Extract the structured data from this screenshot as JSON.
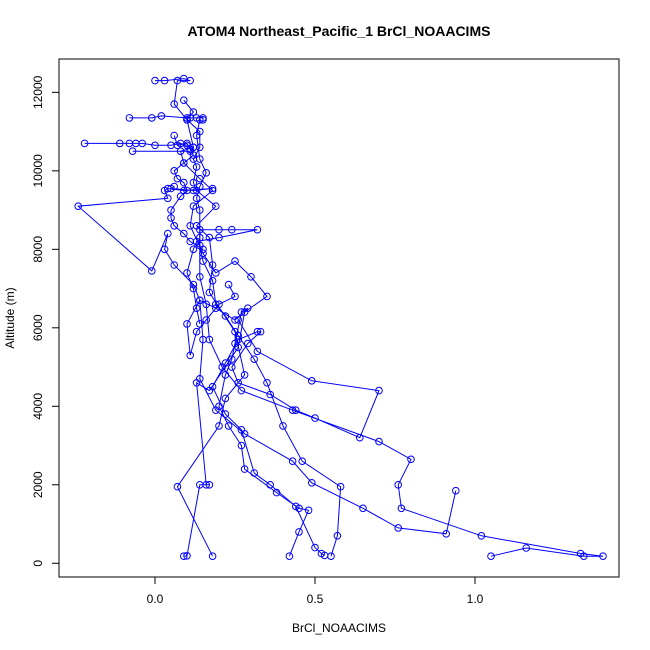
{
  "chart_data": {
    "type": "line",
    "title": "ATOM4 Northeast_Pacific_1 BrCl_NOAACIMS",
    "xlabel": "BrCl_NOAACIMS",
    "ylabel": "Altitude (m)",
    "xlim": [
      -0.3,
      1.45
    ],
    "ylim": [
      -350,
      12850
    ],
    "x_ticks": [
      0.0,
      0.5,
      1.0
    ],
    "x_tick_labels": [
      "0.0",
      "0.5",
      "1.0"
    ],
    "y_ticks": [
      0,
      2000,
      4000,
      6000,
      8000,
      10000,
      12000
    ],
    "y_tick_labels": [
      "0",
      "2000",
      "4000",
      "6000",
      "8000",
      "10000",
      "12000"
    ],
    "grid": false,
    "legend": "none",
    "series_color": "#0000ff",
    "series": [
      {
        "values": [
          [
            0.09,
            180
          ],
          [
            0.1,
            190
          ],
          [
            0.14,
            2000
          ],
          [
            0.17,
            2000
          ],
          [
            0.16,
            2000
          ],
          [
            0.13,
            4600
          ],
          [
            0.17,
            4400
          ],
          [
            0.26,
            5500
          ],
          [
            0.28,
            6400
          ],
          [
            0.35,
            6800
          ],
          [
            0.3,
            7300
          ],
          [
            0.25,
            7700
          ],
          [
            0.19,
            7400
          ],
          [
            0.15,
            7900
          ],
          [
            0.11,
            8600
          ],
          [
            0.12,
            9100
          ],
          [
            0.18,
            9500
          ],
          [
            0.14,
            9800
          ],
          [
            0.09,
            10200
          ],
          [
            0.08,
            10500
          ],
          [
            0.12,
            10600
          ],
          [
            0.1,
            11300
          ],
          [
            0.12,
            11500
          ],
          [
            0.09,
            11800
          ]
        ]
      },
      {
        "values": [
          [
            0.18,
            180
          ],
          [
            0.07,
            1950
          ],
          [
            0.2,
            3500
          ],
          [
            0.22,
            4200
          ],
          [
            0.28,
            4800
          ],
          [
            0.25,
            5900
          ],
          [
            0.17,
            6900
          ],
          [
            0.18,
            7600
          ],
          [
            0.17,
            8300
          ],
          [
            0.13,
            8600
          ],
          [
            0.19,
            9100
          ],
          [
            0.13,
            9500
          ],
          [
            0.12,
            9700
          ],
          [
            0.13,
            10100
          ],
          [
            0.12,
            10300
          ],
          [
            0.14,
            10600
          ],
          [
            0.14,
            11000
          ],
          [
            0.1,
            11300
          ],
          [
            0.06,
            11700
          ],
          [
            0.07,
            12300
          ],
          [
            0.11,
            12300
          ],
          [
            0.09,
            12350
          ],
          [
            0.03,
            12300
          ],
          [
            0.0,
            12300
          ]
        ]
      },
      {
        "values": [
          [
            0.55,
            180
          ],
          [
            0.57,
            700
          ],
          [
            0.58,
            1950
          ],
          [
            0.46,
            2600
          ],
          [
            0.4,
            3500
          ],
          [
            0.35,
            4600
          ],
          [
            0.31,
            5200
          ],
          [
            0.26,
            5800
          ],
          [
            0.22,
            6300
          ],
          [
            0.19,
            6600
          ],
          [
            0.18,
            7200
          ],
          [
            0.15,
            7700
          ],
          [
            0.14,
            8100
          ],
          [
            0.14,
            8500
          ],
          [
            0.2,
            8500
          ],
          [
            0.24,
            8500
          ],
          [
            0.32,
            8500
          ],
          [
            0.2,
            8300
          ],
          [
            0.13,
            8200
          ],
          [
            0.12,
            8000
          ],
          [
            0.1,
            7400
          ],
          [
            0.12,
            7000
          ],
          [
            0.13,
            6500
          ],
          [
            0.14,
            6100
          ]
        ]
      },
      {
        "values": [
          [
            0.42,
            180
          ],
          [
            0.45,
            800
          ],
          [
            0.48,
            1350
          ],
          [
            0.45,
            1400
          ],
          [
            0.38,
            1800
          ],
          [
            0.28,
            2400
          ],
          [
            0.27,
            3000
          ],
          [
            0.23,
            3500
          ],
          [
            0.2,
            4000
          ],
          [
            0.22,
            4800
          ],
          [
            0.24,
            5200
          ],
          [
            0.25,
            5600
          ],
          [
            0.27,
            6400
          ],
          [
            0.29,
            6500
          ],
          [
            0.25,
            6200
          ],
          [
            0.19,
            6500
          ],
          [
            0.14,
            6700
          ],
          [
            0.1,
            6100
          ],
          [
            0.11,
            5300
          ],
          [
            0.13,
            5900
          ],
          [
            0.16,
            6200
          ],
          [
            0.2,
            6600
          ],
          [
            0.25,
            6800
          ],
          [
            0.23,
            7100
          ]
        ]
      },
      {
        "values": [
          [
            0.53,
            200
          ],
          [
            0.52,
            250
          ],
          [
            0.5,
            400
          ],
          [
            0.44,
            1450
          ],
          [
            0.36,
            2000
          ],
          [
            0.31,
            2300
          ],
          [
            0.27,
            3400
          ],
          [
            0.22,
            3800
          ],
          [
            0.18,
            4500
          ],
          [
            0.22,
            5100
          ],
          [
            0.26,
            5700
          ],
          [
            0.32,
            5900
          ],
          [
            0.33,
            5900
          ],
          [
            0.29,
            5600
          ],
          [
            0.24,
            5000
          ],
          [
            0.26,
            4600
          ],
          [
            0.36,
            4300
          ],
          [
            0.44,
            3900
          ],
          [
            0.5,
            3700
          ],
          [
            0.64,
            3200
          ],
          [
            0.7,
            4400
          ],
          [
            0.49,
            4650
          ],
          [
            0.32,
            5400
          ],
          [
            0.26,
            6200
          ]
        ]
      },
      {
        "values": [
          [
            1.05,
            180
          ],
          [
            1.16,
            390
          ],
          [
            1.34,
            180
          ],
          [
            1.4,
            180
          ],
          [
            1.33,
            250
          ],
          [
            1.02,
            700
          ],
          [
            0.77,
            1400
          ],
          [
            0.76,
            2000
          ],
          [
            0.8,
            2650
          ],
          [
            0.7,
            3100
          ],
          [
            0.43,
            3900
          ],
          [
            0.27,
            4400
          ],
          [
            0.21,
            5000
          ],
          [
            0.17,
            5700
          ],
          [
            0.16,
            6600
          ],
          [
            0.14,
            7300
          ],
          [
            0.14,
            8300
          ],
          [
            0.14,
            9000
          ],
          [
            0.13,
            9300
          ],
          [
            0.14,
            9600
          ],
          [
            0.16,
            9950
          ],
          [
            0.14,
            10300
          ],
          [
            0.13,
            10900
          ],
          [
            0.14,
            11300
          ]
        ]
      },
      {
        "values": [
          [
            0.94,
            1850
          ],
          [
            0.91,
            750
          ],
          [
            0.76,
            900
          ],
          [
            0.65,
            1400
          ],
          [
            0.49,
            2050
          ],
          [
            0.43,
            2600
          ],
          [
            0.28,
            3300
          ],
          [
            0.19,
            3900
          ],
          [
            0.14,
            4700
          ],
          [
            0.15,
            5700
          ],
          [
            0.14,
            6700
          ],
          [
            0.12,
            7100
          ],
          [
            0.06,
            7600
          ],
          [
            0.03,
            8000
          ],
          [
            0.04,
            8400
          ],
          [
            -0.01,
            7450
          ],
          [
            -0.24,
            9100
          ],
          [
            0.04,
            9300
          ],
          [
            0.03,
            9500
          ],
          [
            0.04,
            9550
          ],
          [
            0.09,
            9500
          ],
          [
            0.18,
            9550
          ],
          [
            0.12,
            9500
          ],
          [
            0.05,
            9550
          ],
          [
            0.06,
            9600
          ]
        ]
      },
      {
        "values": [
          [
            -0.22,
            10700
          ],
          [
            -0.11,
            10700
          ],
          [
            -0.08,
            10700
          ],
          [
            -0.06,
            10700
          ],
          [
            -0.04,
            10700
          ],
          [
            0.0,
            10650
          ],
          [
            0.05,
            10650
          ],
          [
            0.08,
            10700
          ],
          [
            0.1,
            10650
          ],
          [
            0.12,
            10600
          ],
          [
            0.11,
            10500
          ],
          [
            -0.07,
            10500
          ]
        ]
      },
      {
        "values": [
          [
            -0.08,
            11350
          ],
          [
            -0.01,
            11350
          ],
          [
            0.02,
            11400
          ],
          [
            0.1,
            11350
          ],
          [
            0.11,
            11350
          ],
          [
            0.13,
            11350
          ],
          [
            0.15,
            11350
          ],
          [
            0.15,
            11300
          ]
        ]
      },
      {
        "values": [
          [
            0.06,
            10900
          ],
          [
            0.07,
            10650
          ],
          [
            0.1,
            10700
          ],
          [
            0.11,
            10550
          ],
          [
            0.12,
            10400
          ],
          [
            0.09,
            10200
          ],
          [
            0.06,
            10000
          ],
          [
            0.07,
            9800
          ],
          [
            0.09,
            9700
          ],
          [
            0.1,
            9500
          ],
          [
            0.08,
            9350
          ],
          [
            0.05,
            9000
          ],
          [
            0.05,
            8800
          ],
          [
            0.06,
            8600
          ],
          [
            0.09,
            8400
          ],
          [
            0.11,
            8200
          ],
          [
            0.15,
            8000
          ]
        ]
      }
    ]
  }
}
